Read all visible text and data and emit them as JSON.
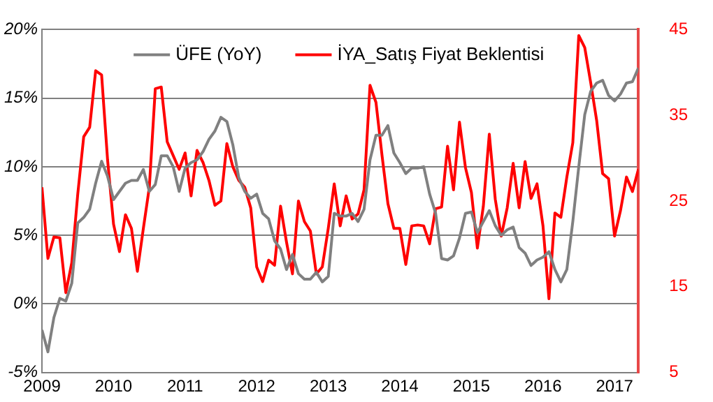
{
  "chart_data": {
    "type": "line",
    "x": [
      "2009-01",
      "2009-02",
      "2009-03",
      "2009-04",
      "2009-05",
      "2009-06",
      "2009-07",
      "2009-08",
      "2009-09",
      "2009-10",
      "2009-11",
      "2009-12",
      "2010-01",
      "2010-02",
      "2010-03",
      "2010-04",
      "2010-05",
      "2010-06",
      "2010-07",
      "2010-08",
      "2010-09",
      "2010-10",
      "2010-11",
      "2010-12",
      "2011-01",
      "2011-02",
      "2011-03",
      "2011-04",
      "2011-05",
      "2011-06",
      "2011-07",
      "2011-08",
      "2011-09",
      "2011-10",
      "2011-11",
      "2011-12",
      "2012-01",
      "2012-02",
      "2012-03",
      "2012-04",
      "2012-05",
      "2012-06",
      "2012-07",
      "2012-08",
      "2012-09",
      "2012-10",
      "2012-11",
      "2012-12",
      "2013-01",
      "2013-02",
      "2013-03",
      "2013-04",
      "2013-05",
      "2013-06",
      "2013-07",
      "2013-08",
      "2013-09",
      "2013-10",
      "2013-11",
      "2013-12",
      "2014-01",
      "2014-02",
      "2014-03",
      "2014-04",
      "2014-05",
      "2014-06",
      "2014-07",
      "2014-08",
      "2014-09",
      "2014-10",
      "2014-11",
      "2014-12",
      "2015-01",
      "2015-02",
      "2015-03",
      "2015-04",
      "2015-05",
      "2015-06",
      "2015-07",
      "2015-08",
      "2015-09",
      "2015-10",
      "2015-11",
      "2015-12",
      "2016-01",
      "2016-02",
      "2016-03",
      "2016-04",
      "2016-05",
      "2016-06",
      "2016-07",
      "2016-08",
      "2016-09",
      "2016-10",
      "2016-11",
      "2016-12",
      "2017-01",
      "2017-02",
      "2017-03",
      "2017-04",
      "2017-05"
    ],
    "series": [
      {
        "name": "ÜFE (YoY)",
        "color": "#808080",
        "values": [
          -1.9,
          -3.5,
          -1.0,
          0.4,
          0.2,
          1.5,
          5.9,
          6.3,
          6.9,
          8.8,
          10.4,
          9.3,
          7.6,
          8.2,
          8.8,
          9.0,
          9.0,
          9.8,
          8.2,
          8.7,
          10.8,
          10.8,
          10.0,
          8.2,
          9.9,
          10.3,
          10.5,
          11.1,
          12.0,
          12.6,
          13.6,
          13.3,
          11.6,
          9.2,
          8.2,
          7.7,
          8.0,
          6.6,
          6.2,
          4.6,
          4.0,
          2.5,
          3.6,
          2.2,
          1.8,
          1.8,
          2.3,
          1.6,
          2.0,
          6.6,
          6.4,
          6.4,
          6.6,
          6.0,
          6.9,
          10.5,
          12.3,
          12.3,
          13.0,
          11.0,
          10.3,
          9.5,
          9.9,
          9.9,
          10.0,
          8.0,
          6.6,
          3.3,
          3.2,
          3.5,
          4.8,
          6.6,
          6.7,
          5.2,
          6.0,
          6.8,
          5.7,
          5.0,
          5.4,
          5.6,
          4.1,
          3.7,
          2.8,
          3.2,
          3.4,
          3.8,
          2.5,
          1.6,
          2.5,
          6.0,
          10.0,
          13.8,
          15.5,
          16.1,
          16.3,
          15.2,
          14.8,
          15.3,
          16.1,
          16.2,
          17.2
        ]
      },
      {
        "name": "İYA_Satış Fiyat Beklentisi",
        "color": "#ff0000",
        "axis": "y2",
        "values": [
          26.6,
          18.3,
          20.8,
          20.7,
          14.3,
          17.8,
          25.8,
          32.5,
          33.6,
          40.2,
          39.7,
          29.8,
          22.3,
          19.1,
          23.4,
          21.8,
          16.8,
          21.8,
          26.6,
          38.1,
          38.3,
          31.9,
          30.3,
          28.7,
          30.6,
          25.6,
          30.9,
          29.5,
          27.4,
          24.5,
          25.0,
          31.7,
          29.0,
          27.4,
          26.6,
          24.2,
          17.3,
          15.6,
          18.1,
          17.5,
          24.4,
          20.2,
          16.5,
          25.0,
          22.6,
          21.5,
          16.5,
          17.3,
          21.8,
          27.0,
          22.1,
          25.6,
          22.9,
          23.5,
          26.3,
          38.5,
          36.5,
          30.4,
          24.7,
          21.8,
          21.8,
          17.6,
          22.1,
          22.2,
          22.1,
          20.0,
          24.1,
          24.3,
          31.4,
          26.3,
          34.2,
          28.9,
          26.0,
          19.5,
          24.4,
          32.8,
          25.2,
          20.9,
          24.2,
          29.4,
          24.2,
          29.6,
          25.3,
          27.0,
          22.1,
          13.6,
          23.6,
          23.1,
          27.8,
          31.8,
          44.3,
          42.9,
          38.8,
          34.4,
          28.2,
          27.6,
          20.9,
          23.9,
          27.8,
          26.1,
          28.7
        ]
      }
    ],
    "xlim": [
      "2009-01",
      "2017-05"
    ],
    "xticks": [
      "2009",
      "2010",
      "2011",
      "2012",
      "2013",
      "2014",
      "2015",
      "2016",
      "2017"
    ],
    "ylim": [
      -5,
      20
    ],
    "yticks": [
      {
        "value": -5,
        "label": "-5%"
      },
      {
        "value": 0,
        "label": "0%"
      },
      {
        "value": 5,
        "label": "5%"
      },
      {
        "value": 10,
        "label": "10%"
      },
      {
        "value": 15,
        "label": "15%"
      },
      {
        "value": 20,
        "label": "20%"
      }
    ],
    "y2lim": [
      5,
      45
    ],
    "y2ticks": [
      5,
      15,
      25,
      35,
      45
    ],
    "grid": "y",
    "legend": "top"
  }
}
